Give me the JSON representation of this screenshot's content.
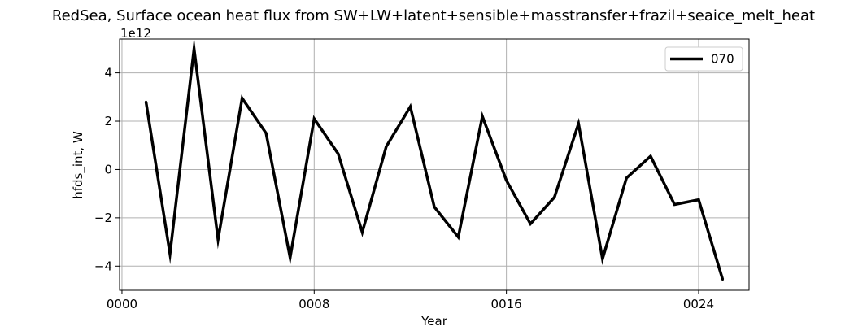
{
  "chart_data": {
    "type": "line",
    "title": "RedSea, Surface ocean heat flux from SW+LW+latent+sensible+masstransfer+frazil+seaice_melt_heat",
    "xlabel": "Year",
    "ylabel": "hfds_int, W",
    "y_exponent_label": "1e12",
    "y_scale": 1000000000000.0,
    "xlim": [
      -0.1,
      26.1
    ],
    "ylim": [
      -5.0,
      5.4
    ],
    "xticks": [
      0,
      8,
      16,
      24
    ],
    "xtick_labels": [
      "0000",
      "0008",
      "0016",
      "0024"
    ],
    "yticks": [
      -4,
      -2,
      0,
      2,
      4
    ],
    "ytick_labels": [
      "−4",
      "−2",
      "0",
      "2",
      "4"
    ],
    "grid": true,
    "legend_position": "upper right",
    "series": [
      {
        "name": "070",
        "color": "#000000",
        "x": [
          1,
          2,
          3,
          4,
          5,
          6,
          7,
          8,
          9,
          10,
          11,
          12,
          13,
          14,
          15,
          16,
          17,
          18,
          19,
          20,
          21,
          22,
          23,
          24,
          25
        ],
        "values": [
          2.8,
          -3.5,
          5.0,
          -2.9,
          2.95,
          1.5,
          -3.65,
          2.1,
          0.65,
          -2.6,
          0.95,
          2.6,
          -1.55,
          -2.8,
          2.2,
          -0.45,
          -2.25,
          -1.15,
          1.9,
          -3.7,
          -0.35,
          0.55,
          -1.45,
          -1.25,
          -4.55
        ]
      }
    ]
  }
}
